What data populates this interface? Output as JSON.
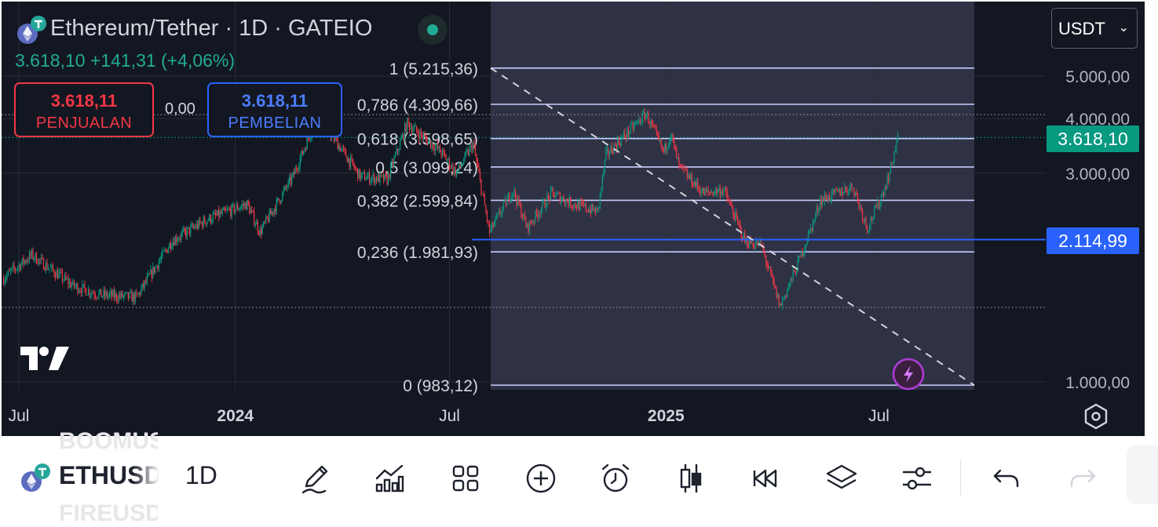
{
  "header": {
    "title": "Ethereum/Tether · 1D · GATEIO",
    "quote": "3.618,10  +141,31 (+4,06%)",
    "sell": {
      "price": "3.618,11",
      "label": "PENJUALAN"
    },
    "spread": "0,00",
    "buy": {
      "price": "3.618,11",
      "label": "PEMBELIAN"
    },
    "currency": "USDT",
    "currency_chevron": "⌄"
  },
  "price_tags": {
    "last": {
      "label": "3.618,10",
      "color": "#089981"
    },
    "line": {
      "label": "2.114,99",
      "color": "#2962ff"
    }
  },
  "chart_data": {
    "type": "candlestick",
    "symbol": "Ethereum/Tether",
    "interval": "1D",
    "exchange": "GATEIO",
    "y_scale": "log",
    "y_ticks": [
      {
        "value": 5000,
        "label": "5.000,00"
      },
      {
        "value": 4000,
        "label": "4.000,00"
      },
      {
        "value": 3000,
        "label": "3.000,00"
      },
      {
        "value": 1000,
        "label": "1.000,00"
      }
    ],
    "x_ticks": [
      {
        "date": "2023-07-01",
        "label": "Jul",
        "bold": false
      },
      {
        "date": "2024-01-01",
        "label": "2024",
        "bold": true
      },
      {
        "date": "2024-07-01",
        "label": "Jul",
        "bold": false
      },
      {
        "date": "2025-01-01",
        "label": "2025",
        "bold": true
      },
      {
        "date": "2025-07-01",
        "label": "Jul",
        "bold": false
      }
    ],
    "price_path": [
      [
        "2023-06-18",
        1720
      ],
      [
        "2023-07-13",
        1950
      ],
      [
        "2023-08-17",
        1660
      ],
      [
        "2023-09-10",
        1580
      ],
      [
        "2023-10-10",
        1560
      ],
      [
        "2023-11-09",
        2100
      ],
      [
        "2023-12-09",
        2350
      ],
      [
        "2024-01-12",
        2550
      ],
      [
        "2024-01-23",
        2200
      ],
      [
        "2024-02-20",
        2950
      ],
      [
        "2024-03-12",
        4080
      ],
      [
        "2024-04-17",
        2950
      ],
      [
        "2024-05-10",
        2900
      ],
      [
        "2024-05-27",
        3900
      ],
      [
        "2024-06-25",
        3350
      ],
      [
        "2024-07-08",
        3000
      ],
      [
        "2024-07-22",
        3500
      ],
      [
        "2024-08-05",
        2200
      ],
      [
        "2024-08-25",
        2750
      ],
      [
        "2024-09-06",
        2250
      ],
      [
        "2024-09-27",
        2700
      ],
      [
        "2024-10-15",
        2550
      ],
      [
        "2024-11-05",
        2450
      ],
      [
        "2024-11-12",
        3300
      ],
      [
        "2024-12-16",
        4100
      ],
      [
        "2024-12-31",
        3350
      ],
      [
        "2025-01-06",
        3700
      ],
      [
        "2025-01-13",
        3100
      ],
      [
        "2025-02-03",
        2700
      ],
      [
        "2025-02-20",
        2750
      ],
      [
        "2025-03-10",
        2100
      ],
      [
        "2025-03-24",
        2050
      ],
      [
        "2025-04-09",
        1490
      ],
      [
        "2025-04-22",
        1800
      ],
      [
        "2025-05-08",
        2350
      ],
      [
        "2025-05-13",
        2600
      ],
      [
        "2025-06-10",
        2800
      ],
      [
        "2025-06-22",
        2250
      ],
      [
        "2025-07-03",
        2600
      ],
      [
        "2025-07-11",
        3000
      ],
      [
        "2025-07-18",
        3618
      ]
    ],
    "fibonacci": {
      "from_date": "2024-08-05",
      "to_date": "2025-09-20",
      "levels": [
        {
          "ratio": "1",
          "value": 5215.36,
          "label": "1 (5.215,36)"
        },
        {
          "ratio": "0,786",
          "value": 4309.66,
          "label": "0,786 (4.309,66)"
        },
        {
          "ratio": "0,618",
          "value": 3598.65,
          "label": "0,618 (3.598,65)"
        },
        {
          "ratio": "0,5",
          "value": 3099.24,
          "label": "0,5 (3.099,24)"
        },
        {
          "ratio": "0,382",
          "value": 2599.84,
          "label": "0,382 (2.599,84)"
        },
        {
          "ratio": "0,236",
          "value": 1981.93,
          "label": "0,236 (1.981,93)"
        },
        {
          "ratio": "0",
          "value": 983.12,
          "label": "0 (983,12)"
        }
      ]
    },
    "trendline": {
      "start": [
        "2024-08-05",
        5215.36
      ],
      "end": [
        "2025-09-20",
        983.12
      ]
    },
    "horizontal_line": {
      "value": 2114.99,
      "start_date": "2024-07-20"
    },
    "dotted_lines": [
      4080,
      3618.1,
      1480
    ],
    "last_price": 3618.1
  },
  "toolbar": {
    "symbol": "ETHUSDT",
    "ghost_above": "BOOMUSDT",
    "ghost_below": "FIREUSDT",
    "timeframe": "1D",
    "tools": [
      {
        "name": "draw-tools",
        "icon": "pencil-icon"
      },
      {
        "name": "indicators",
        "icon": "indicators-icon"
      },
      {
        "name": "layout",
        "icon": "grid-icon"
      },
      {
        "name": "add",
        "icon": "plus-circle-icon"
      },
      {
        "name": "alerts",
        "icon": "alarm-clock-icon"
      },
      {
        "name": "chart-type",
        "icon": "candles-icon"
      },
      {
        "name": "replay",
        "icon": "rewind-icon"
      },
      {
        "name": "objects",
        "icon": "layers-icon"
      },
      {
        "name": "settings",
        "icon": "sliders-icon"
      },
      {
        "name": "undo",
        "icon": "undo-icon"
      },
      {
        "name": "redo",
        "icon": "redo-icon"
      }
    ]
  }
}
